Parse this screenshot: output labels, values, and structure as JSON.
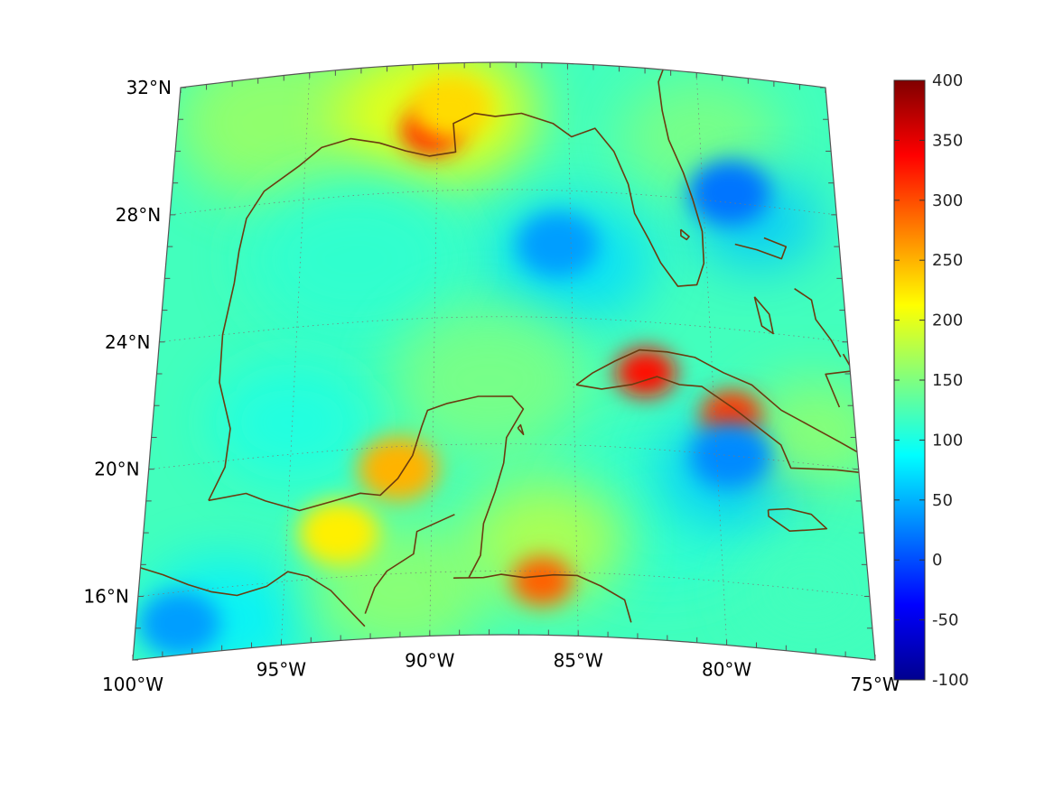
{
  "map": {
    "projection": "lambert-conic",
    "lon_range": [
      -100,
      -75
    ],
    "lat_range": [
      14,
      32
    ],
    "graticule": "dotted",
    "frame_ticks": true,
    "coastline_color": "#6a3b10",
    "lon_labels": [
      {
        "lon": -100,
        "text": "100°W"
      },
      {
        "lon": -95,
        "text": "95°W"
      },
      {
        "lon": -90,
        "text": "90°W"
      },
      {
        "lon": -85,
        "text": "85°W"
      },
      {
        "lon": -80,
        "text": "80°W"
      },
      {
        "lon": -75,
        "text": "75°W"
      }
    ],
    "lat_labels": [
      {
        "lat": 32,
        "text": "32°N"
      },
      {
        "lat": 28,
        "text": "28°N"
      },
      {
        "lat": 24,
        "text": "24°N"
      },
      {
        "lat": 20,
        "text": "20°N"
      },
      {
        "lat": 16,
        "text": "16°N"
      }
    ]
  },
  "colorbar": {
    "colormap": "jet",
    "range": [
      -100,
      400
    ],
    "placement": "right",
    "tick_labels": [
      "400",
      "350",
      "300",
      "250",
      "200",
      "150",
      "100",
      "50",
      "0",
      "-50",
      "-100"
    ]
  },
  "field": {
    "background_value": 120,
    "features": [
      {
        "name": "louisiana-max",
        "lon": -90.2,
        "lat": 29.9,
        "value": 320
      },
      {
        "name": "north-gulf-coast",
        "lon": -89.5,
        "lat": 30.6,
        "value": 230
      },
      {
        "name": "cuba-west-max",
        "lon": -82.4,
        "lat": 22.4,
        "value": 330
      },
      {
        "name": "cuba-central-max",
        "lon": -79.4,
        "lat": 21.3,
        "value": 310
      },
      {
        "name": "honduras-max",
        "lon": -86.2,
        "lat": 15.7,
        "value": 290
      },
      {
        "name": "florida-strait-min",
        "lon": -85.5,
        "lat": 26.3,
        "value": 40
      },
      {
        "name": "atlantic-min",
        "lon": -79.0,
        "lat": 28.3,
        "value": 20
      },
      {
        "name": "caribbean-min",
        "lon": -79.5,
        "lat": 20.0,
        "value": 30
      },
      {
        "name": "pacific-min",
        "lon": -98.5,
        "lat": 15.0,
        "value": 40
      },
      {
        "name": "campeche-max",
        "lon": -91.2,
        "lat": 19.3,
        "value": 250
      },
      {
        "name": "south-gulf",
        "lon": -93.2,
        "lat": 17.4,
        "value": 220
      }
    ]
  }
}
